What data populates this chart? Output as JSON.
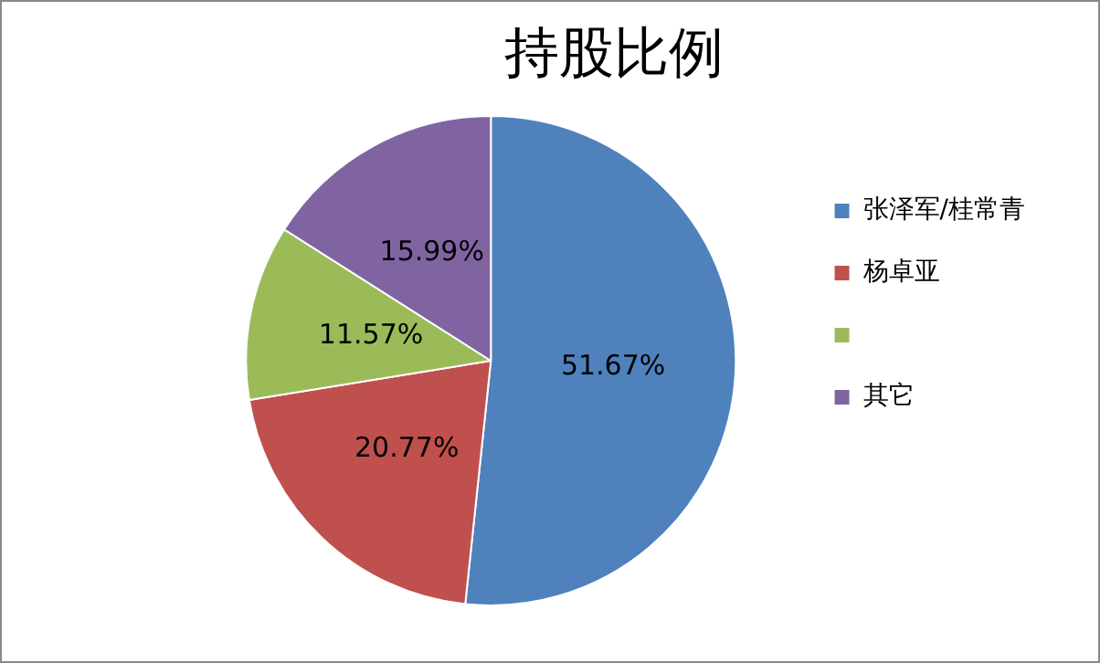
{
  "chart_data": {
    "type": "pie",
    "title": "持股比例",
    "categories": [
      "张泽军/桂常青",
      "杨卓亚",
      null,
      "其它"
    ],
    "values": [
      51.67,
      20.77,
      11.57,
      15.99
    ],
    "colors": [
      "#4f81bd",
      "#c0504d",
      "#9bbb59",
      "#8064a2"
    ],
    "value_labels": [
      "51.67%",
      "20.77%",
      "11.57%",
      "15.99%"
    ],
    "legend": "right"
  }
}
